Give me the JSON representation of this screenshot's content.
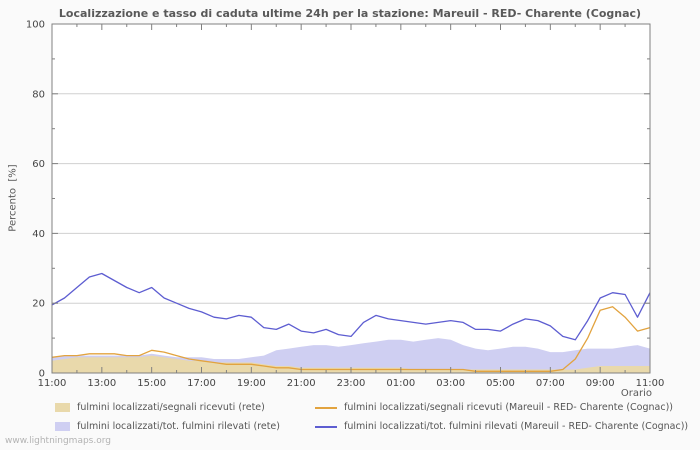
{
  "page": {
    "title": "Localizzazione e tasso di caduta ultime 24h per la stazione: Mareuil - RED- Charente (Cognac)",
    "watermark": "www.lightningmaps.org"
  },
  "chart_data": {
    "type": "area",
    "title": "Localizzazione e tasso di caduta ultime 24h per la stazione: Mareuil - RED- Charente (Cognac)",
    "xlabel": "Orario",
    "ylabel": "Percento  [%]",
    "ylim": [
      0,
      100
    ],
    "yticks": [
      0,
      20,
      40,
      60,
      80,
      100
    ],
    "y_minor_ticks": [
      10,
      30,
      50,
      70,
      90
    ],
    "grid": "horizontal",
    "legend_position": "bottom",
    "x_interval_minutes": 30,
    "x_tick_labels": [
      "11:00",
      "13:00",
      "15:00",
      "17:00",
      "19:00",
      "21:00",
      "23:00",
      "01:00",
      "03:00",
      "05:00",
      "07:00",
      "09:00",
      "11:00"
    ],
    "series": [
      {
        "id": "rete-tot",
        "name": "fulmini localizzati/tot. fulmini rilevati (rete)",
        "type": "area",
        "color": "#cfcff2",
        "values": [
          4.5,
          5,
          5,
          5,
          5,
          5,
          5,
          5,
          5.5,
          5,
          4.5,
          4.5,
          4.5,
          4,
          4,
          4,
          4.5,
          5,
          6.5,
          7,
          7.5,
          8,
          8,
          7.5,
          8,
          8.5,
          9,
          9.5,
          9.5,
          9,
          9.5,
          10,
          9.5,
          8,
          7,
          6.5,
          7,
          7.5,
          7.5,
          7,
          6,
          6,
          6.5,
          7,
          7,
          7,
          7.5,
          8,
          7
        ]
      },
      {
        "id": "rete-segnali",
        "name": "fulmini localizzati/segnali ricevuti (rete)",
        "type": "area",
        "color": "#e9d9ab",
        "values": [
          3.5,
          4,
          4.5,
          4.5,
          4.5,
          4.5,
          4.5,
          4.5,
          5,
          4.5,
          4,
          3.5,
          3.5,
          3,
          3,
          3,
          3,
          2.5,
          2,
          2,
          1.5,
          1.5,
          1.5,
          1.5,
          1.5,
          1.5,
          1.5,
          1.5,
          1.5,
          1,
          1,
          1,
          1,
          1,
          1,
          1,
          1,
          1,
          1,
          1,
          1,
          1,
          1,
          1.5,
          2,
          2,
          2,
          2,
          2
        ]
      },
      {
        "id": "station-segnali",
        "name": "fulmini localizzati/segnali ricevuti (Mareuil - RED- Charente (Cognac))",
        "type": "line",
        "color": "#e2a33f",
        "values": [
          4.5,
          5,
          5,
          5.5,
          5.5,
          5.5,
          5,
          5,
          6.5,
          6,
          5,
          4,
          3.5,
          3,
          2.5,
          2.5,
          2.5,
          2,
          1.5,
          1.5,
          1,
          1,
          1,
          1,
          1,
          1,
          1,
          1,
          1,
          1,
          1,
          1,
          1,
          1,
          0.5,
          0.5,
          0.5,
          0.5,
          0.5,
          0.5,
          0.5,
          1,
          4,
          10,
          18,
          19,
          16,
          12,
          13
        ]
      },
      {
        "id": "station-tot",
        "name": "fulmini localizzati/tot. fulmini rilevati (Mareuil - RED- Charente (Cognac))",
        "type": "line",
        "color": "#5d5dd1",
        "values": [
          19.5,
          21.5,
          24.5,
          27.5,
          28.5,
          26.5,
          24.5,
          23,
          24.5,
          21.5,
          20,
          18.5,
          17.5,
          16,
          15.5,
          16.5,
          16,
          13,
          12.5,
          14,
          12,
          11.5,
          12.5,
          11,
          10.5,
          14.5,
          16.5,
          15.5,
          15,
          14.5,
          14,
          14.5,
          15,
          14.5,
          12.5,
          12.5,
          12,
          14,
          15.5,
          15,
          13.5,
          10.5,
          9.5,
          15,
          21.5,
          23,
          22.5,
          16,
          23
        ]
      }
    ],
    "legend": [
      {
        "label": "fulmini localizzati/segnali ricevuti (rete)",
        "swatch": "area",
        "color": "#e9d9ab"
      },
      {
        "label": "fulmini localizzati/segnali ricevuti (Mareuil - RED- Charente (Cognac))",
        "swatch": "line",
        "color": "#e2a33f"
      },
      {
        "label": "fulmini localizzati/tot. fulmini rilevati (rete)",
        "swatch": "area",
        "color": "#cfcff2"
      },
      {
        "label": "fulmini localizzati/tot. fulmini rilevati (Mareuil - RED- Charente (Cognac))",
        "swatch": "line",
        "color": "#5d5dd1"
      }
    ],
    "colors": {
      "grid": "#d0d0d0",
      "axis": "#808080",
      "tick_text": "#454545"
    }
  }
}
